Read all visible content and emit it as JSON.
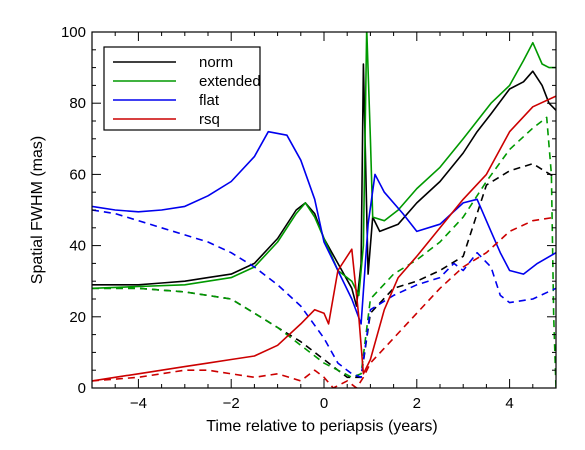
{
  "chart_data": {
    "type": "line",
    "xlabel": "Time relative to periapsis (years)",
    "ylabel": "Spatial FWHM (mas)",
    "xlim": [
      -5,
      5
    ],
    "ylim": [
      0,
      100
    ],
    "xticks": [
      -4,
      -2,
      0,
      2,
      4
    ],
    "yticks": [
      0,
      20,
      40,
      60,
      80,
      100
    ],
    "x_tick_labels": [
      "−4",
      "−2",
      "0",
      "2",
      "4"
    ],
    "y_tick_labels": [
      "0",
      "20",
      "40",
      "60",
      "80",
      "100"
    ],
    "grid": false,
    "legend": "top-left",
    "series": [
      {
        "name": "norm",
        "color": "#000000",
        "style": "solid",
        "points": [
          [
            -5,
            29
          ],
          [
            -4,
            29
          ],
          [
            -3.5,
            29.5
          ],
          [
            -3,
            30
          ],
          [
            -2.5,
            31
          ],
          [
            -2,
            32
          ],
          [
            -1.5,
            35
          ],
          [
            -1,
            42
          ],
          [
            -0.6,
            50
          ],
          [
            -0.4,
            52
          ],
          [
            -0.2,
            49
          ],
          [
            0,
            42
          ],
          [
            0.3,
            35
          ],
          [
            0.6,
            28
          ],
          [
            0.7,
            23
          ],
          [
            0.8,
            35
          ],
          [
            0.85,
            91
          ],
          [
            0.95,
            32
          ],
          [
            1.05,
            48
          ],
          [
            1.2,
            44
          ],
          [
            1.6,
            46
          ],
          [
            2,
            52
          ],
          [
            2.5,
            58
          ],
          [
            3,
            66
          ],
          [
            3.3,
            72
          ],
          [
            3.6,
            77
          ],
          [
            4,
            84
          ],
          [
            4.3,
            86
          ],
          [
            4.5,
            89
          ],
          [
            4.7,
            85
          ],
          [
            4.85,
            80
          ],
          [
            5,
            78
          ]
        ]
      },
      {
        "name": "norm",
        "color": "#000000",
        "style": "dashed",
        "points": [
          [
            -5,
            28
          ],
          [
            -4,
            28
          ],
          [
            -3,
            27
          ],
          [
            -2,
            25
          ],
          [
            -1.5,
            21
          ],
          [
            -1,
            17
          ],
          [
            -0.5,
            13
          ],
          [
            0,
            8
          ],
          [
            0.3,
            5
          ],
          [
            0.5,
            3
          ],
          [
            0.8,
            3
          ],
          [
            1,
            21
          ],
          [
            1.5,
            28
          ],
          [
            2,
            30
          ],
          [
            2.5,
            33
          ],
          [
            3,
            37
          ],
          [
            3.5,
            57
          ],
          [
            4,
            61
          ],
          [
            4.5,
            63
          ],
          [
            5,
            59
          ]
        ]
      },
      {
        "name": "extended",
        "color": "#009900",
        "style": "solid",
        "points": [
          [
            -5,
            28
          ],
          [
            -4,
            28.5
          ],
          [
            -3,
            29
          ],
          [
            -2.5,
            30
          ],
          [
            -2,
            31
          ],
          [
            -1.5,
            34
          ],
          [
            -1,
            41
          ],
          [
            -0.6,
            49
          ],
          [
            -0.4,
            52
          ],
          [
            -0.2,
            48
          ],
          [
            0,
            42
          ],
          [
            0.3,
            33
          ],
          [
            0.6,
            30
          ],
          [
            0.75,
            26
          ],
          [
            0.85,
            40
          ],
          [
            0.92,
            101
          ],
          [
            1.0,
            70
          ],
          [
            1.05,
            48
          ],
          [
            1.3,
            47
          ],
          [
            1.6,
            50
          ],
          [
            2,
            56
          ],
          [
            2.5,
            62
          ],
          [
            3,
            70
          ],
          [
            3.3,
            75
          ],
          [
            3.6,
            80
          ],
          [
            4,
            85
          ],
          [
            4.3,
            92
          ],
          [
            4.5,
            97
          ],
          [
            4.7,
            91
          ],
          [
            4.85,
            90
          ],
          [
            5,
            90
          ]
        ]
      },
      {
        "name": "extended",
        "color": "#009900",
        "style": "dashed",
        "points": [
          [
            -5,
            28
          ],
          [
            -4,
            28
          ],
          [
            -3,
            27
          ],
          [
            -2,
            25
          ],
          [
            -1.5,
            21
          ],
          [
            -1,
            17
          ],
          [
            -0.5,
            12
          ],
          [
            0,
            7
          ],
          [
            0.3,
            5
          ],
          [
            0.6,
            3
          ],
          [
            0.8,
            4
          ],
          [
            1,
            25
          ],
          [
            1.5,
            32
          ],
          [
            2,
            36
          ],
          [
            2.5,
            41
          ],
          [
            3,
            48
          ],
          [
            3.5,
            58
          ],
          [
            4,
            67
          ],
          [
            4.5,
            73
          ],
          [
            4.8,
            76
          ],
          [
            4.9,
            60
          ],
          [
            4.95,
            20
          ],
          [
            5,
            0
          ]
        ]
      },
      {
        "name": "flat",
        "color": "#0000ee",
        "style": "solid",
        "points": [
          [
            -5,
            51
          ],
          [
            -4.5,
            50
          ],
          [
            -4,
            49.5
          ],
          [
            -3.5,
            50
          ],
          [
            -3,
            51
          ],
          [
            -2.5,
            54
          ],
          [
            -2,
            58
          ],
          [
            -1.5,
            65
          ],
          [
            -1.2,
            72
          ],
          [
            -0.8,
            71
          ],
          [
            -0.5,
            64
          ],
          [
            -0.2,
            53
          ],
          [
            0,
            41
          ],
          [
            0.3,
            33
          ],
          [
            0.6,
            25
          ],
          [
            0.8,
            18
          ],
          [
            0.95,
            46
          ],
          [
            1.1,
            60
          ],
          [
            1.3,
            55
          ],
          [
            1.7,
            49
          ],
          [
            2,
            44
          ],
          [
            2.5,
            46
          ],
          [
            3,
            52
          ],
          [
            3.3,
            53
          ],
          [
            3.6,
            44
          ],
          [
            3.8,
            38
          ],
          [
            4,
            33
          ],
          [
            4.3,
            32
          ],
          [
            4.6,
            35
          ],
          [
            5,
            38
          ]
        ]
      },
      {
        "name": "flat",
        "color": "#0000ee",
        "style": "dashed",
        "points": [
          [
            -5,
            50
          ],
          [
            -4.5,
            49
          ],
          [
            -4,
            47
          ],
          [
            -3.5,
            45
          ],
          [
            -3,
            43
          ],
          [
            -2.5,
            41
          ],
          [
            -2,
            38
          ],
          [
            -1.5,
            34
          ],
          [
            -1,
            29
          ],
          [
            -0.5,
            23
          ],
          [
            0,
            14
          ],
          [
            0.3,
            7
          ],
          [
            0.6,
            4
          ],
          [
            0.8,
            3
          ],
          [
            1,
            22
          ],
          [
            1.5,
            26
          ],
          [
            2,
            29
          ],
          [
            2.5,
            31
          ],
          [
            2.8,
            35
          ],
          [
            3,
            33
          ],
          [
            3.3,
            38
          ],
          [
            3.6,
            34
          ],
          [
            3.8,
            26
          ],
          [
            4,
            24
          ],
          [
            4.5,
            25
          ],
          [
            5,
            28
          ]
        ]
      },
      {
        "name": "rsq",
        "color": "#cc0000",
        "style": "solid",
        "points": [
          [
            -5,
            2
          ],
          [
            -4.5,
            3
          ],
          [
            -4,
            4
          ],
          [
            -3.5,
            5
          ],
          [
            -3,
            6
          ],
          [
            -2.5,
            7
          ],
          [
            -2,
            8
          ],
          [
            -1.5,
            9
          ],
          [
            -1,
            12
          ],
          [
            -0.5,
            18
          ],
          [
            -0.2,
            22
          ],
          [
            0,
            21
          ],
          [
            0.1,
            18
          ],
          [
            0.3,
            33
          ],
          [
            0.6,
            39
          ],
          [
            0.75,
            20
          ],
          [
            0.85,
            4
          ],
          [
            1,
            8
          ],
          [
            1.3,
            22
          ],
          [
            1.6,
            31
          ],
          [
            2,
            37
          ],
          [
            2.5,
            45
          ],
          [
            3,
            53
          ],
          [
            3.5,
            60
          ],
          [
            4,
            72
          ],
          [
            4.5,
            79
          ],
          [
            5,
            82
          ]
        ]
      },
      {
        "name": "rsq",
        "color": "#cc0000",
        "style": "dashed",
        "points": [
          [
            -5,
            2
          ],
          [
            -4,
            3
          ],
          [
            -3,
            5
          ],
          [
            -2.5,
            5
          ],
          [
            -2,
            4
          ],
          [
            -1.5,
            3
          ],
          [
            -1,
            4
          ],
          [
            -0.5,
            2
          ],
          [
            -0.2,
            5
          ],
          [
            0,
            3
          ],
          [
            0.2,
            0
          ],
          [
            0.5,
            2
          ],
          [
            0.7,
            0
          ],
          [
            0.85,
            3
          ],
          [
            1,
            7
          ],
          [
            1.5,
            14
          ],
          [
            2,
            21
          ],
          [
            2.5,
            28
          ],
          [
            3,
            34
          ],
          [
            3.5,
            38
          ],
          [
            4,
            44
          ],
          [
            4.5,
            47
          ],
          [
            5,
            48
          ]
        ]
      }
    ],
    "legend_entries": [
      {
        "label": "norm",
        "color": "#000000"
      },
      {
        "label": "extended",
        "color": "#009900"
      },
      {
        "label": "flat",
        "color": "#0000ee"
      },
      {
        "label": "rsq",
        "color": "#cc0000"
      }
    ]
  }
}
